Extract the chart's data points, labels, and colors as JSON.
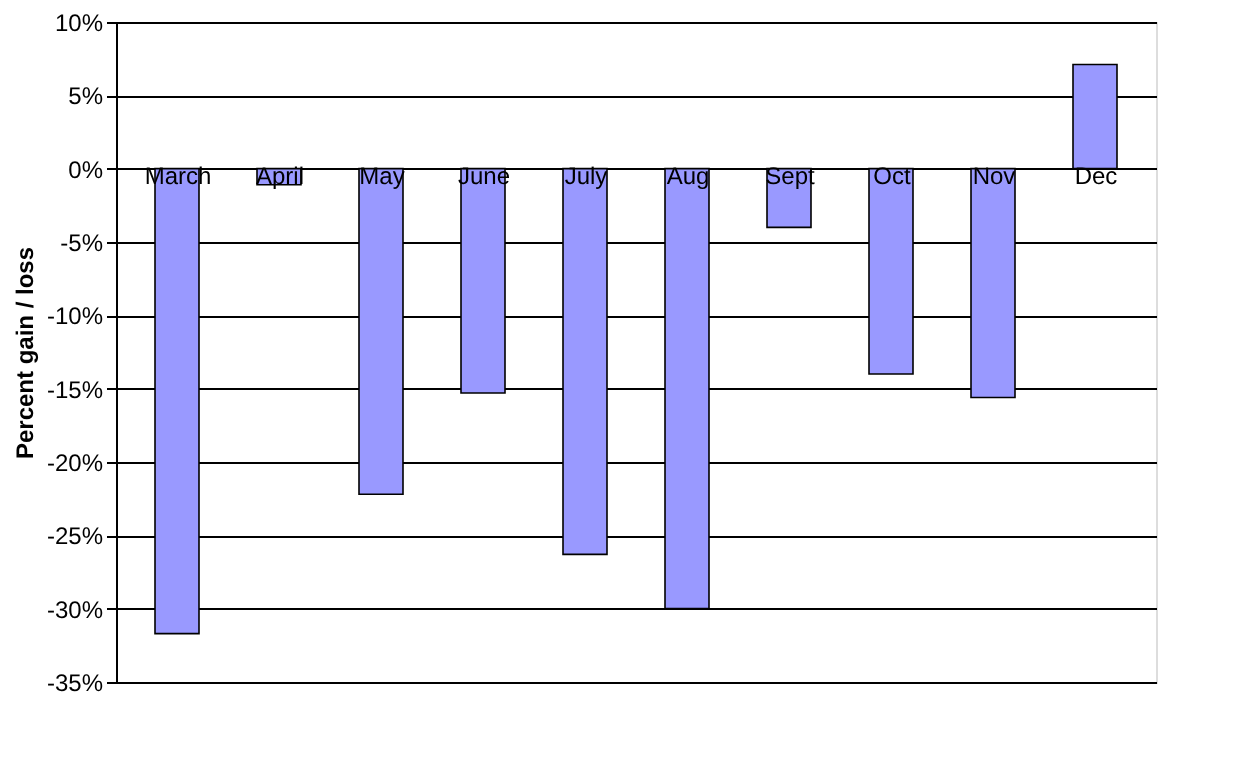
{
  "chart_data": {
    "type": "bar",
    "ylabel": "Percent gain / loss",
    "categories": [
      "March",
      "April",
      "May",
      "June",
      "July",
      "Aug",
      "Sept",
      "Oct",
      "Nov",
      "Dec"
    ],
    "values": [
      -31.7,
      -1.1,
      -22.2,
      -15.3,
      -26.3,
      -30.0,
      -4.0,
      -14.0,
      -15.6,
      7.1
    ],
    "color": "#9999ff",
    "ylim": [
      -35,
      10
    ],
    "yticks": [
      {
        "value": 10,
        "label": "10%"
      },
      {
        "value": 5,
        "label": "5%"
      },
      {
        "value": 0,
        "label": "0%"
      },
      {
        "value": -5,
        "label": "-5%"
      },
      {
        "value": -10,
        "label": "-10%"
      },
      {
        "value": -15,
        "label": "-15%"
      },
      {
        "value": -20,
        "label": "-20%"
      },
      {
        "value": -25,
        "label": "-25%"
      },
      {
        "value": -30,
        "label": "-30%"
      },
      {
        "value": -35,
        "label": "-35%"
      }
    ],
    "grid": "y"
  }
}
